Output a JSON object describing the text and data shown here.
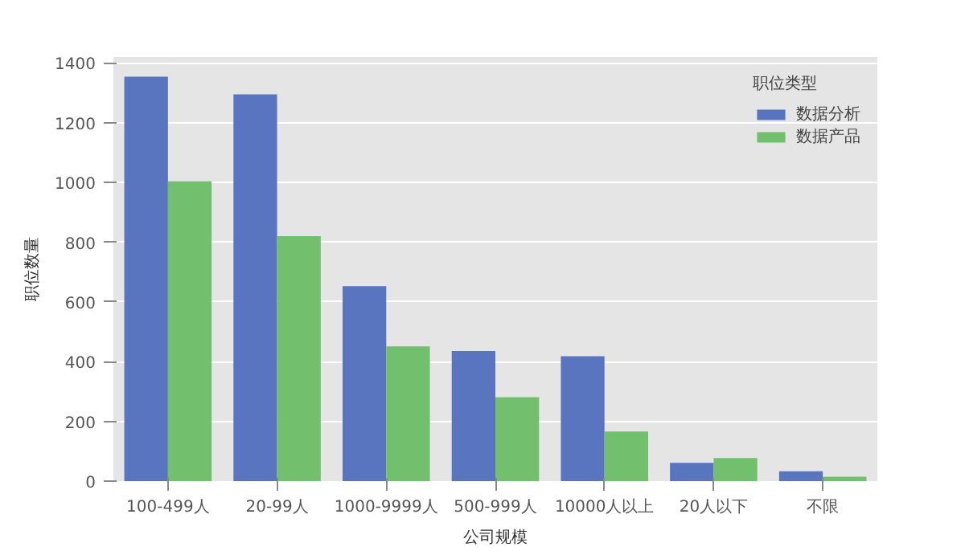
{
  "chart_data": {
    "type": "bar",
    "xlabel": "公司规模",
    "ylabel": "职位数量",
    "legend_title": "职位类型",
    "categories": [
      "100-499人",
      "20-99人",
      "1000-9999人",
      "500-999人",
      "10000人以上",
      "20人以下",
      "不限"
    ],
    "series": [
      {
        "name": "数据分析",
        "color": "#5975c0",
        "values": [
          1354,
          1295,
          653,
          436,
          418,
          61,
          33
        ]
      },
      {
        "name": "数据产品",
        "color": "#72c06e",
        "values": [
          1004,
          820,
          451,
          281,
          166,
          77,
          15
        ]
      }
    ],
    "ylim": [
      0,
      1420
    ],
    "yticks": [
      0,
      200,
      400,
      600,
      800,
      1000,
      1200,
      1400
    ],
    "grid": "y",
    "legend": "top right"
  }
}
